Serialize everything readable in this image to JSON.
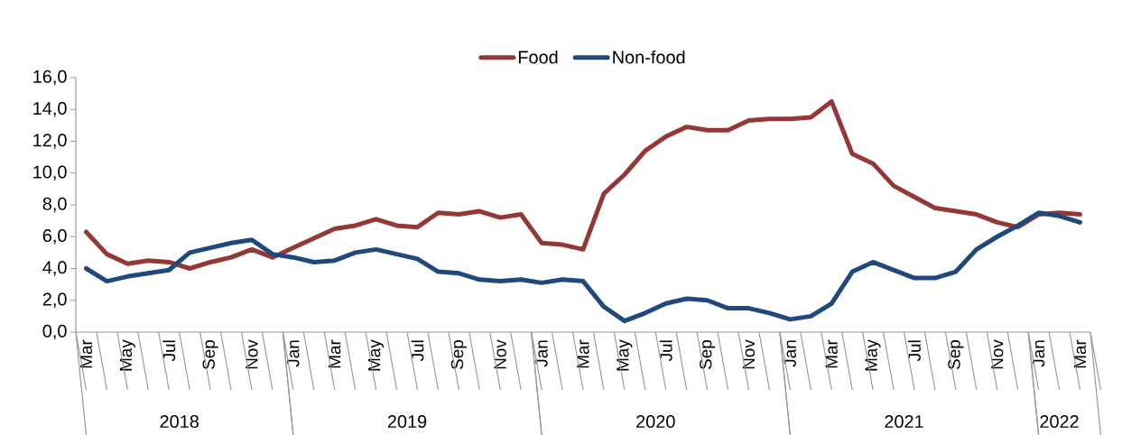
{
  "chart_data": {
    "type": "line",
    "categories": [
      "Mar",
      null,
      "May",
      null,
      "Jul",
      null,
      "Sep",
      null,
      "Nov",
      null,
      "Jan",
      null,
      "Mar",
      null,
      "May",
      null,
      "Jul",
      null,
      "Sep",
      null,
      "Nov",
      null,
      "Jan",
      null,
      "Mar",
      null,
      "May",
      null,
      "Jul",
      null,
      "Sep",
      null,
      "Nov",
      null,
      "Jan",
      null,
      "Mar",
      null,
      "May",
      null,
      "Jul",
      null,
      "Sep",
      null,
      "Nov",
      null,
      "Jan",
      null,
      "Mar"
    ],
    "series": [
      {
        "name": "Food",
        "color": "#953735",
        "values": [
          6.3,
          4.9,
          4.3,
          4.5,
          4.4,
          4.0,
          4.4,
          4.7,
          5.2,
          4.7,
          5.3,
          5.9,
          6.5,
          6.7,
          7.1,
          6.7,
          6.6,
          7.5,
          7.4,
          7.6,
          7.2,
          7.4,
          5.6,
          5.5,
          5.2,
          8.7,
          9.9,
          11.4,
          12.3,
          12.9,
          12.7,
          12.7,
          13.3,
          13.4,
          13.4,
          13.5,
          14.5,
          11.2,
          10.6,
          9.2,
          8.5,
          7.8,
          7.6,
          7.4,
          6.9,
          6.6,
          7.4,
          7.5,
          7.4
        ]
      },
      {
        "name": "Non-food",
        "color": "#1f497d",
        "values": [
          4.0,
          3.2,
          3.5,
          3.7,
          3.9,
          5.0,
          5.3,
          5.6,
          5.8,
          4.9,
          4.7,
          4.4,
          4.5,
          5.0,
          5.2,
          4.9,
          4.6,
          3.8,
          3.7,
          3.3,
          3.2,
          3.3,
          3.1,
          3.3,
          3.2,
          1.6,
          0.7,
          1.2,
          1.8,
          2.1,
          2.0,
          1.5,
          1.5,
          1.2,
          0.8,
          1.0,
          1.8,
          3.8,
          4.4,
          3.9,
          3.4,
          3.4,
          3.8,
          5.2,
          6.0,
          6.7,
          7.5,
          7.3,
          6.9
        ]
      }
    ],
    "ylim": [
      0,
      16
    ],
    "yticks": [
      {
        "value": 0,
        "label": "0,0"
      },
      {
        "value": 2,
        "label": "2,0"
      },
      {
        "value": 4,
        "label": "4,0"
      },
      {
        "value": 6,
        "label": "6,0"
      },
      {
        "value": 8,
        "label": "8,0"
      },
      {
        "value": 10,
        "label": "10,0"
      },
      {
        "value": 12,
        "label": "12,0"
      },
      {
        "value": 14,
        "label": "14,0"
      },
      {
        "value": 16,
        "label": "16,0"
      }
    ],
    "annotations": [
      "2018",
      "2019",
      "2020",
      "2021",
      "2022"
    ],
    "legend": "top",
    "grid": false,
    "marker": "none",
    "line_style": "solid"
  }
}
